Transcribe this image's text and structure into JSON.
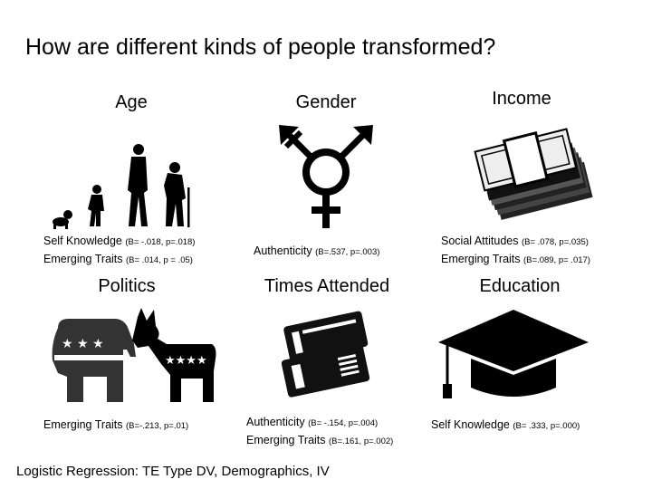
{
  "title": "How are different kinds of people transformed?",
  "footer": "Logistic Regression: TE Type DV, Demographics, IV",
  "panels": {
    "age": {
      "label": "Age",
      "icon": "human-evolution-icon",
      "stats": [
        {
          "name": "Self Knowledge",
          "value": "(B= -.018, p=.018)"
        },
        {
          "name": "Emerging Traits",
          "value": "(B= .014, p = .05)"
        }
      ]
    },
    "gender": {
      "label": "Gender",
      "icon": "gender-symbol-icon",
      "stats": [
        {
          "name": "Authenticity",
          "value": "(B=.537, p=.003)"
        }
      ]
    },
    "income": {
      "label": "Income",
      "icon": "money-stack-icon",
      "stats": [
        {
          "name": "Social Attitudes",
          "value": "(B= .078, p=.035)"
        },
        {
          "name": "Emerging Traits",
          "value": "(B=.089, p= .017)"
        }
      ]
    },
    "politics": {
      "label": "Politics",
      "icon": "elephant-donkey-icon",
      "stats": [
        {
          "name": "Emerging Traits",
          "value": "(B=-.213, p=.01)"
        }
      ]
    },
    "times_attended": {
      "label": "Times Attended",
      "icon": "tickets-icon",
      "stats": [
        {
          "name": "Authenticity",
          "value": "(B= -.154, p=.004)"
        },
        {
          "name": "Emerging Traits",
          "value": "(B=.161, p=.002)"
        }
      ]
    },
    "education": {
      "label": "Education",
      "icon": "graduation-cap-icon",
      "stats": [
        {
          "name": "Self Knowledge",
          "value": "(B= .333, p=.000)"
        }
      ]
    }
  }
}
